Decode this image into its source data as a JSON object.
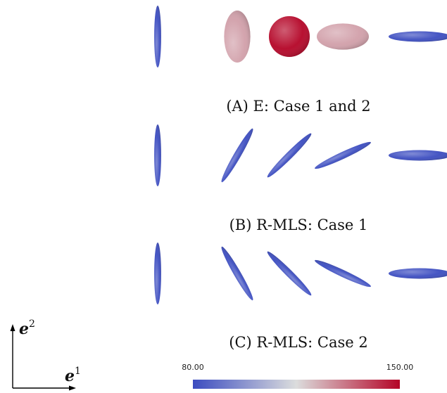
{
  "colors": {
    "low": "#3b4cc0",
    "mid": "#dcdddd",
    "high": "#b40426",
    "text": "#111111"
  },
  "rows": [
    {
      "caption": "(A) E: Case 1 and 2",
      "ellipsoids": [
        {
          "angle_deg": 90,
          "aspect": 0.15,
          "value": 80
        },
        {
          "angle_deg": 90,
          "aspect": 0.48,
          "value": 125
        },
        {
          "angle_deg": 0,
          "aspect": 1.0,
          "value": 150
        },
        {
          "angle_deg": 0,
          "aspect": 0.48,
          "value": 125
        },
        {
          "angle_deg": 0,
          "aspect": 0.15,
          "value": 80
        }
      ]
    },
    {
      "caption": "(B) R-MLS: Case 1",
      "ellipsoids": [
        {
          "angle_deg": 90,
          "aspect": 0.15,
          "value": 80
        },
        {
          "angle_deg": 60,
          "aspect": 0.15,
          "value": 80
        },
        {
          "angle_deg": 45,
          "aspect": 0.15,
          "value": 80
        },
        {
          "angle_deg": 25,
          "aspect": 0.15,
          "value": 80
        },
        {
          "angle_deg": 0,
          "aspect": 0.15,
          "value": 80
        }
      ]
    },
    {
      "caption": "(C) R-MLS: Case 2",
      "ellipsoids": [
        {
          "angle_deg": 90,
          "aspect": 0.15,
          "value": 80
        },
        {
          "angle_deg": 120,
          "aspect": 0.15,
          "value": 80
        },
        {
          "angle_deg": 135,
          "aspect": 0.15,
          "value": 80
        },
        {
          "angle_deg": 155,
          "aspect": 0.15,
          "value": 80
        },
        {
          "angle_deg": 0,
          "aspect": 0.15,
          "value": 80
        }
      ]
    }
  ],
  "colorbar": {
    "min_label": "80.00",
    "max_label": "150.00",
    "min": 80,
    "max": 150
  },
  "axes": {
    "e1_base": "e",
    "e1_sup": "1",
    "e2_base": "e",
    "e2_sup": "2"
  }
}
